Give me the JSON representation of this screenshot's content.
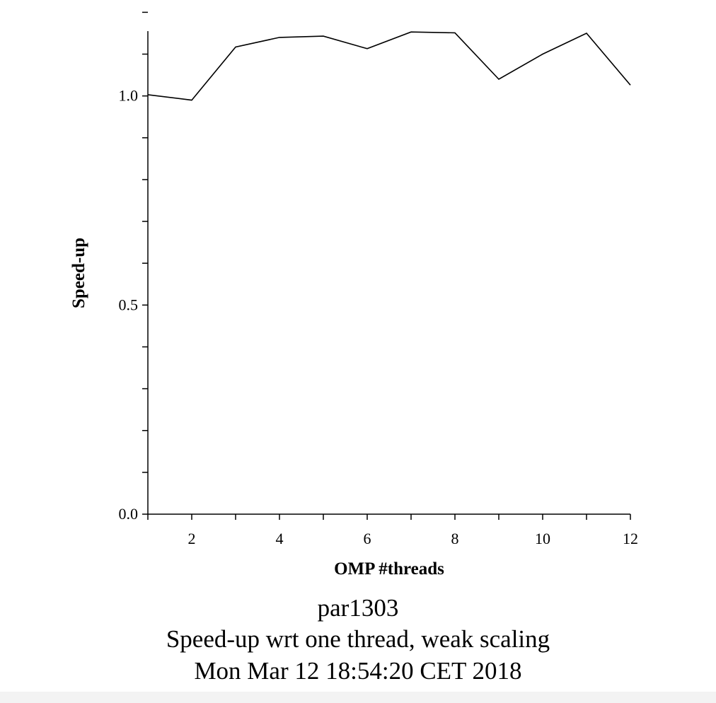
{
  "chart_data": {
    "type": "line",
    "x": [
      1,
      2,
      3,
      4,
      5,
      6,
      7,
      8,
      9,
      10,
      11,
      12
    ],
    "y": [
      1.003,
      0.99,
      1.117,
      1.14,
      1.143,
      1.113,
      1.153,
      1.151,
      1.04,
      1.1,
      1.15,
      1.026
    ],
    "xlabel": "OMP #threads",
    "ylabel": "Speed-up",
    "xlim": [
      1,
      12
    ],
    "ylim": [
      0,
      1.155
    ],
    "xticks": [
      2,
      4,
      6,
      8,
      10,
      12
    ],
    "xtick_labels": [
      "2",
      "4",
      "6",
      "8",
      "10",
      "12"
    ],
    "yticks": [
      0.0,
      0.5,
      1.0
    ],
    "ytick_labels": [
      "0.0",
      "0.5",
      "1.0"
    ],
    "yminor_step": 0.1,
    "grid": false,
    "line_color": "#000000"
  },
  "captions": {
    "line1": "par1303",
    "line2": "Speed-up wrt one thread, weak scaling",
    "line3": "Mon Mar 12 18:54:20 CET 2018"
  }
}
